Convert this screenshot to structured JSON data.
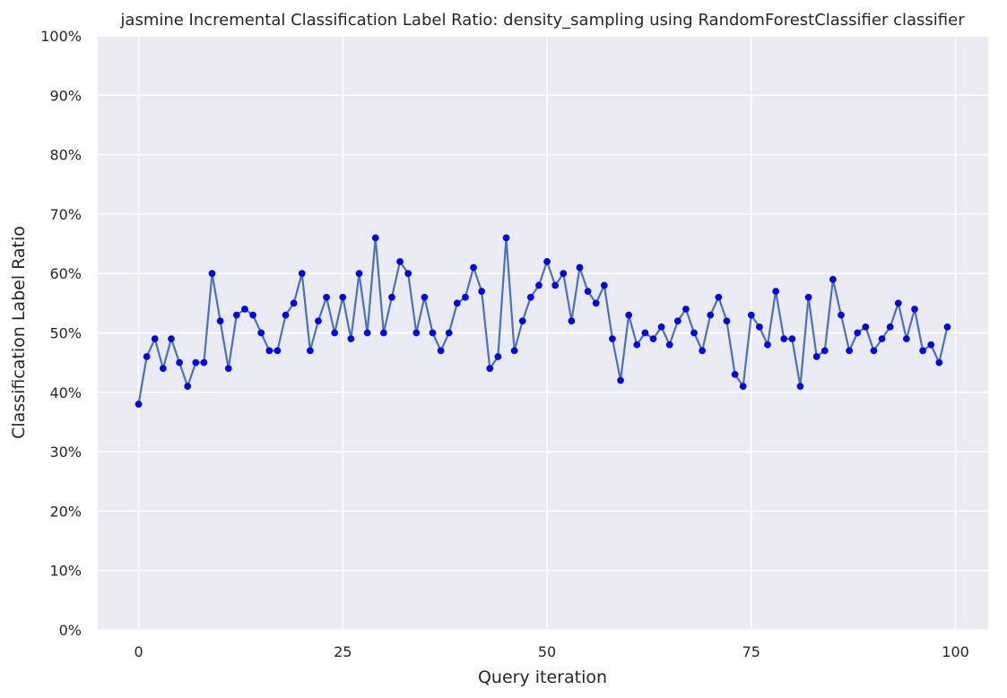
{
  "chart_data": {
    "type": "line",
    "title": "jasmine Incremental Classification Label Ratio: density_sampling using RandomForestClassifier classifier",
    "xlabel": "Query iteration",
    "ylabel": "Classification Label Ratio",
    "xlim": [
      -5,
      104
    ],
    "ylim": [
      0,
      100
    ],
    "x_ticks": [
      0,
      25,
      50,
      75,
      100
    ],
    "y_ticks": [
      0,
      10,
      20,
      30,
      40,
      50,
      60,
      70,
      80,
      90,
      100
    ],
    "y_tick_labels": [
      "0%",
      "10%",
      "20%",
      "30%",
      "40%",
      "50%",
      "60%",
      "70%",
      "80%",
      "90%",
      "100%"
    ],
    "grid": true,
    "background": "#eaeaf2",
    "grid_color": "#ffffff",
    "line_color": "#4c72b0",
    "marker_color": "#0000ff",
    "x": [
      0,
      1,
      2,
      3,
      4,
      5,
      6,
      7,
      8,
      9,
      10,
      11,
      12,
      13,
      14,
      15,
      16,
      17,
      18,
      19,
      20,
      21,
      22,
      23,
      24,
      25,
      26,
      27,
      28,
      29,
      30,
      31,
      32,
      33,
      34,
      35,
      36,
      37,
      38,
      39,
      40,
      41,
      42,
      43,
      44,
      45,
      46,
      47,
      48,
      49,
      50,
      51,
      52,
      53,
      54,
      55,
      56,
      57,
      58,
      59,
      60,
      61,
      62,
      63,
      64,
      65,
      66,
      67,
      68,
      69,
      70,
      71,
      72,
      73,
      74,
      75,
      76,
      77,
      78,
      79,
      80,
      81,
      82,
      83,
      84,
      85,
      86,
      87,
      88,
      89,
      90,
      91,
      92,
      93,
      94,
      95,
      96,
      97,
      98,
      99
    ],
    "y": [
      38,
      46,
      49,
      44,
      49,
      45,
      41,
      45,
      45,
      60,
      52,
      44,
      53,
      54,
      53,
      50,
      47,
      47,
      53,
      55,
      60,
      47,
      52,
      56,
      50,
      56,
      49,
      60,
      50,
      66,
      50,
      56,
      62,
      60,
      50,
      56,
      50,
      47,
      50,
      55,
      56,
      61,
      57,
      44,
      46,
      66,
      47,
      52,
      56,
      58,
      62,
      58,
      60,
      52,
      61,
      57,
      55,
      58,
      49,
      42,
      53,
      48,
      50,
      49,
      51,
      48,
      52,
      54,
      50,
      47,
      53,
      56,
      52,
      43,
      41,
      53,
      51,
      48,
      57,
      49,
      49,
      41,
      56,
      46,
      47,
      59,
      53,
      47,
      50,
      51,
      47,
      49,
      51,
      55,
      49,
      54,
      47,
      48,
      45,
      51
    ]
  }
}
